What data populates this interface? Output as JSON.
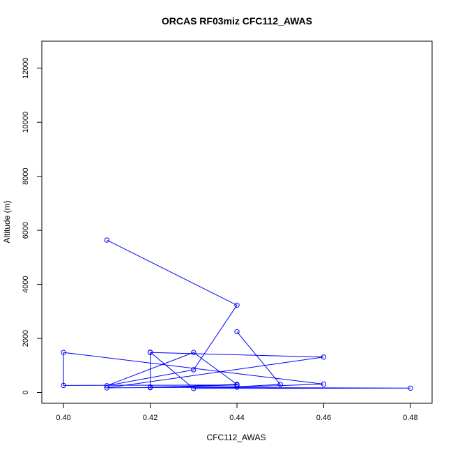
{
  "chart_data": {
    "type": "line",
    "title": "ORCAS RF03miz CFC112_AWAS",
    "xlabel": "CFC112_AWAS",
    "ylabel": "Altitude (m)",
    "xlim": [
      0.395,
      0.485
    ],
    "ylim": [
      -400,
      13000
    ],
    "x_ticks": [
      0.4,
      0.42,
      0.44,
      0.46,
      0.48
    ],
    "x_tick_labels": [
      "0.40",
      "0.42",
      "0.44",
      "0.46",
      "0.48"
    ],
    "y_ticks": [
      0,
      2000,
      4000,
      6000,
      8000,
      10000,
      12000
    ],
    "y_tick_labels": [
      "0",
      "2000",
      "4000",
      "6000",
      "8000",
      "10000",
      "12000"
    ],
    "grid": false,
    "markers": "open-circle",
    "series": [
      {
        "color": "#0000ff",
        "points": [
          {
            "x": 0.41,
            "y": 5640
          },
          {
            "x": 0.44,
            "y": 3230
          },
          {
            "x": 0.43,
            "y": 840
          },
          {
            "x": 0.41,
            "y": 250
          },
          {
            "x": 0.43,
            "y": 1480
          },
          {
            "x": 0.44,
            "y": 300
          },
          {
            "x": 0.42,
            "y": 180
          },
          {
            "x": 0.42,
            "y": 1480
          },
          {
            "x": 0.46,
            "y": 1310
          },
          {
            "x": 0.41,
            "y": 170
          },
          {
            "x": 0.44,
            "y": 200
          },
          {
            "x": 0.46,
            "y": 310
          },
          {
            "x": 0.4,
            "y": 1480
          },
          {
            "x": 0.4,
            "y": 260
          },
          {
            "x": 0.44,
            "y": 280
          },
          {
            "x": 0.42,
            "y": 190
          },
          {
            "x": 0.48,
            "y": 160
          },
          {
            "x": 0.43,
            "y": 150
          },
          {
            "x": 0.42,
            "y": 1490
          },
          {
            "x": 0.42,
            "y": 200
          },
          {
            "x": 0.44,
            "y": 210
          },
          {
            "x": 0.45,
            "y": 300
          },
          {
            "x": 0.44,
            "y": 2250
          }
        ]
      }
    ]
  }
}
